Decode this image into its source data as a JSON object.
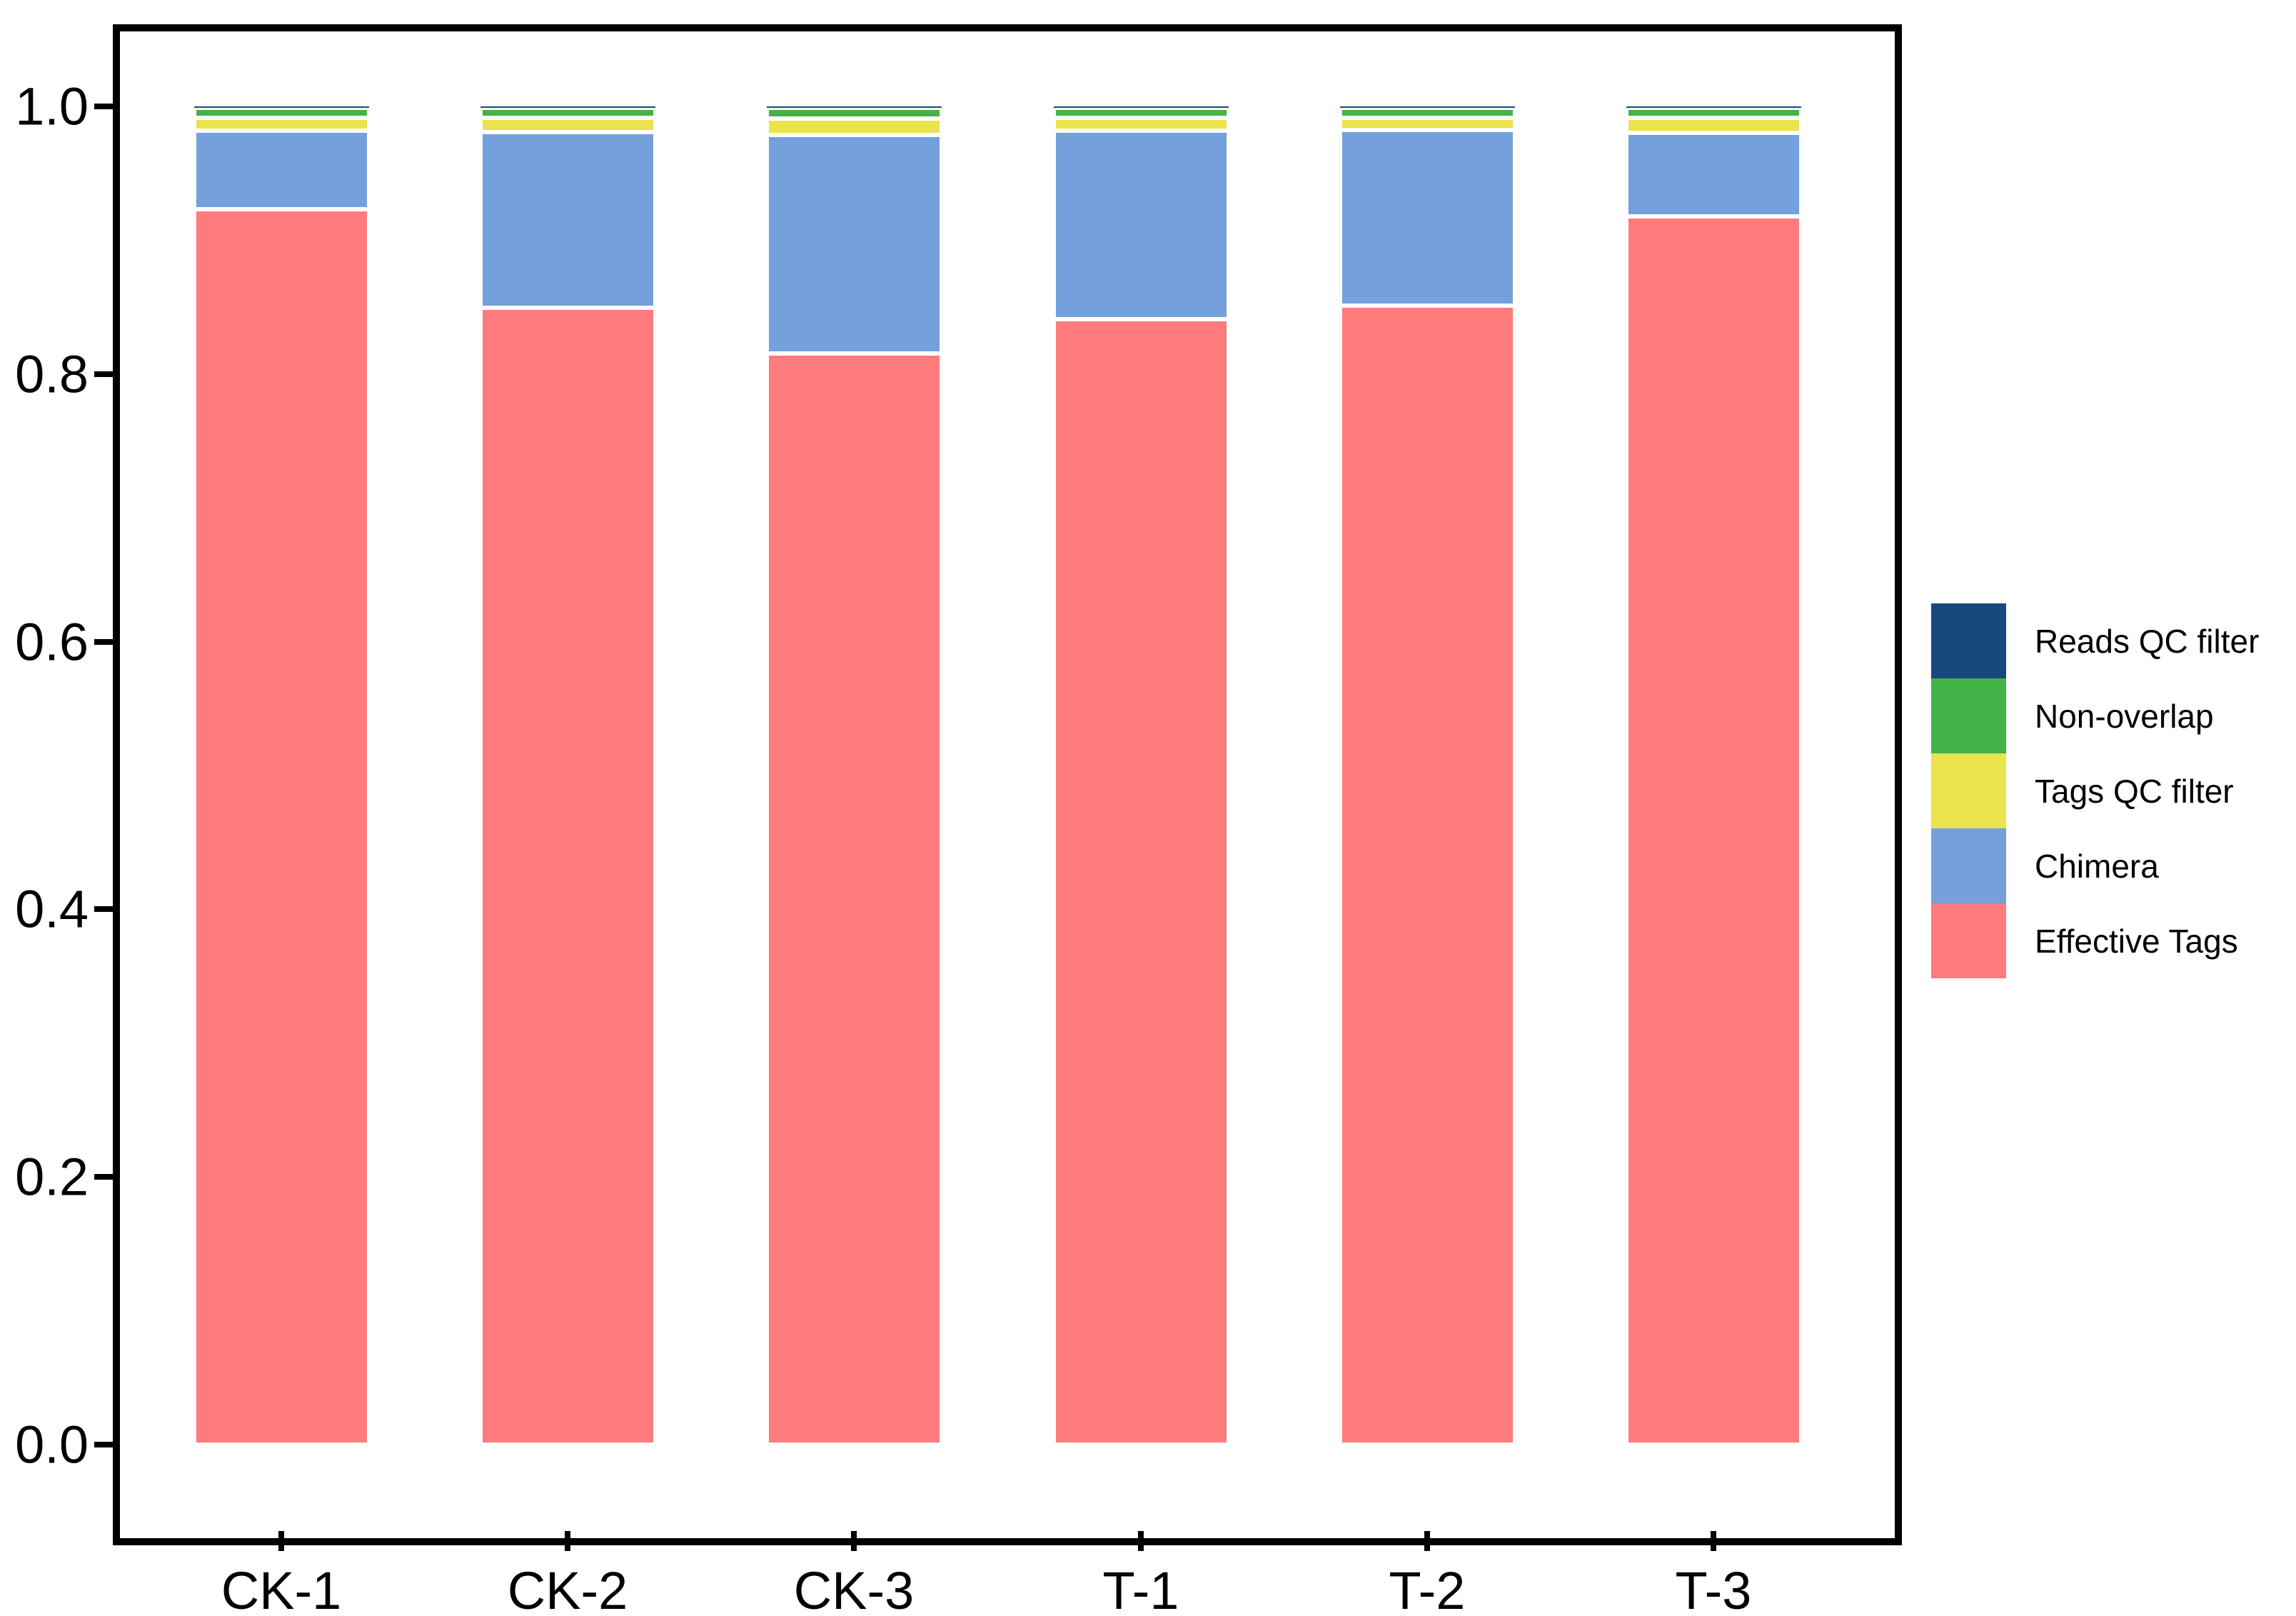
{
  "chart_data": {
    "type": "bar",
    "stacked": true,
    "title": "",
    "xlabel": "",
    "ylabel": "",
    "grid": false,
    "legend_position": "right",
    "ylim": [
      0.0,
      1.0
    ],
    "yticks": [
      0.0,
      0.2,
      0.4,
      0.6,
      0.8,
      1.0
    ],
    "ytick_labels": [
      "0.0",
      "0.2",
      "0.4",
      "0.6",
      "0.8",
      "1.0"
    ],
    "categories": [
      "CK-1",
      "CK-2",
      "CK-3",
      "T-1",
      "T-2",
      "T-3"
    ],
    "series": [
      {
        "name": "Reads QC filter",
        "color": "#17497E",
        "values": [
          0.001,
          0.001,
          0.001,
          0.001,
          0.001,
          0.001
        ]
      },
      {
        "name": "Non-overlap",
        "color": "#43B247",
        "values": [
          0.0076,
          0.0076,
          0.008,
          0.0076,
          0.0076,
          0.0076
        ]
      },
      {
        "name": "Tags QC filter",
        "color": "#EBE34B",
        "values": [
          0.0094,
          0.0107,
          0.0123,
          0.0096,
          0.0091,
          0.0114
        ]
      },
      {
        "name": "Chimera",
        "color": "#74A0DB",
        "values": [
          0.059,
          0.1312,
          0.1634,
          0.1408,
          0.1313,
          0.062
        ]
      },
      {
        "name": "Effective Tags",
        "color": "#FD7B7C",
        "values": [
          0.923,
          0.8495,
          0.8153,
          0.841,
          0.851,
          0.918
        ]
      }
    ],
    "colors": {
      "axis": "#000000",
      "text": "#000000",
      "separator": "#FFFFFF"
    }
  }
}
